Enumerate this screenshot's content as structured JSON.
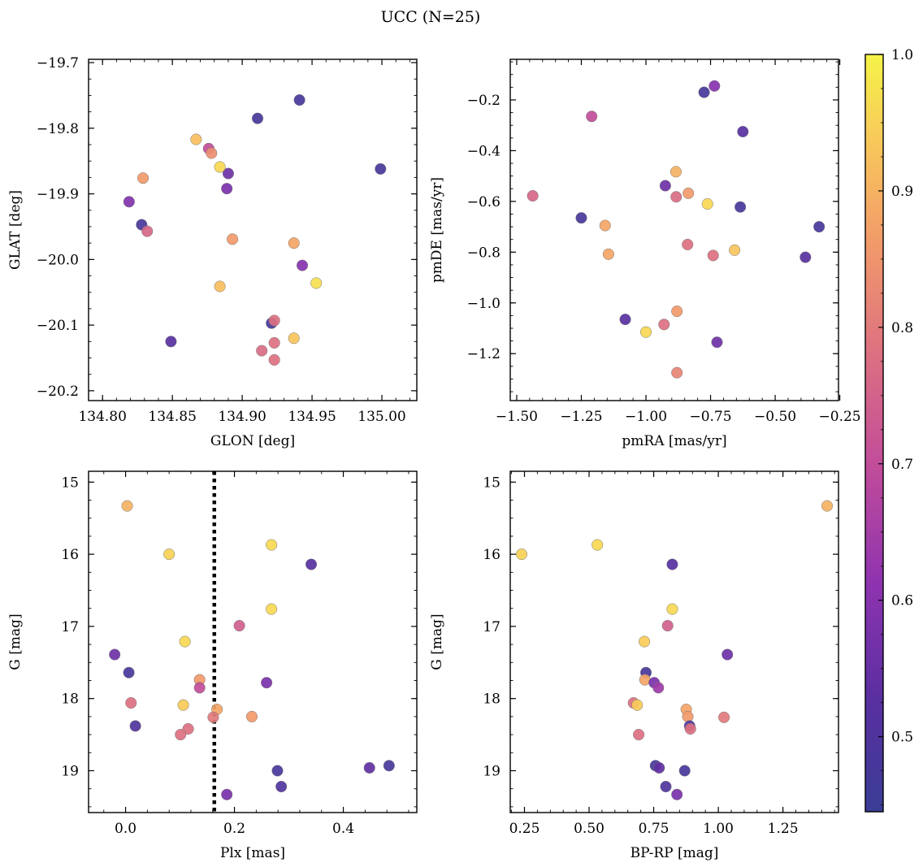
{
  "figure": {
    "title": "UCC (N=25)"
  },
  "colorbar": {
    "range": [
      0.445,
      1.0
    ],
    "ticks": [
      0.5,
      0.6,
      0.7,
      0.8,
      0.9,
      1.0
    ],
    "tick_labels": [
      "0.5",
      "0.6",
      "0.7",
      "0.8",
      "0.9",
      "1.0"
    ],
    "colormap": "plasma"
  },
  "chart_data": [
    {
      "type": "scatter",
      "id": "glon-glat",
      "xlabel": "GLON [deg]",
      "ylabel": "GLAT [deg]",
      "xlim": [
        134.79,
        135.025
      ],
      "ylim": [
        -20.215,
        -19.695
      ],
      "xticks": [
        134.8,
        134.85,
        134.9,
        134.95,
        135.0
      ],
      "xtick_labels": [
        "134.80",
        "134.85",
        "134.90",
        "134.95",
        "135.00"
      ],
      "yticks": [
        -19.7,
        -19.8,
        -19.9,
        -20.0,
        -20.1,
        -20.2
      ],
      "ytick_labels": [
        "−19.7",
        "−19.8",
        "−19.9",
        "−20.0",
        "−20.1",
        "−20.2"
      ],
      "invert_y": false,
      "x": [
        134.941,
        134.911,
        134.999,
        134.828,
        134.89,
        134.889,
        134.819,
        134.943,
        134.921,
        134.876,
        134.832,
        134.914,
        134.923,
        134.923,
        134.923,
        134.878,
        134.829,
        134.893,
        134.937,
        134.884,
        134.867,
        134.937,
        134.884,
        134.953,
        134.849
      ],
      "y": [
        -19.757,
        -19.785,
        -19.862,
        -19.947,
        -19.869,
        -19.892,
        -19.912,
        -20.009,
        -20.097,
        -19.831,
        -19.957,
        -20.139,
        -20.153,
        -20.127,
        -20.093,
        -19.838,
        -19.876,
        -19.969,
        -19.975,
        -20.041,
        -19.817,
        -20.12,
        -19.859,
        -20.036,
        -20.125
      ],
      "prob": [
        0.48,
        0.48,
        0.48,
        0.48,
        0.56,
        0.58,
        0.59,
        0.6,
        0.48,
        0.7,
        0.76,
        0.77,
        0.78,
        0.78,
        0.78,
        0.84,
        0.86,
        0.86,
        0.88,
        0.92,
        0.92,
        0.93,
        0.96,
        0.97,
        0.52
      ]
    },
    {
      "type": "scatter",
      "id": "pmra-pmde",
      "xlabel": "pmRA [mas/yr]",
      "ylabel": "pmDE [mas/yr]",
      "xlim": [
        -1.525,
        -0.255
      ],
      "ylim": [
        -1.385,
        -0.04
      ],
      "xticks": [
        -1.5,
        -1.25,
        -1.0,
        -0.75,
        -0.5,
        -0.25
      ],
      "xtick_labels": [
        "−1.50",
        "−1.25",
        "−1.00",
        "−0.75",
        "−0.50",
        "−0.25"
      ],
      "yticks": [
        -0.2,
        -0.4,
        -0.6,
        -0.8,
        -1.0,
        -1.2
      ],
      "ytick_labels": [
        "−0.2",
        "−0.4",
        "−0.6",
        "−0.8",
        "−1.0",
        "−1.2"
      ],
      "invert_y": false,
      "x": [
        -0.775,
        -0.625,
        -0.735,
        -1.25,
        -0.635,
        -0.33,
        -0.383,
        -0.925,
        -1.08,
        -0.725,
        -1.21,
        -1.438,
        -0.883,
        -0.839,
        -0.74,
        -0.93,
        -0.88,
        -0.836,
        -0.88,
        -1.158,
        -1.145,
        -0.884,
        -1.0,
        -0.762,
        -0.657
      ],
      "y": [
        -0.17,
        -0.325,
        -0.145,
        -0.665,
        -0.622,
        -0.7,
        -0.82,
        -0.538,
        -1.065,
        -1.155,
        -0.265,
        -0.578,
        -0.582,
        -0.77,
        -0.813,
        -1.085,
        -1.275,
        -0.568,
        -1.033,
        -0.695,
        -0.808,
        -0.483,
        -1.115,
        -0.61,
        -0.792
      ],
      "prob": [
        0.48,
        0.52,
        0.6,
        0.48,
        0.48,
        0.48,
        0.52,
        0.56,
        0.52,
        0.56,
        0.7,
        0.76,
        0.77,
        0.78,
        0.78,
        0.78,
        0.82,
        0.86,
        0.86,
        0.88,
        0.88,
        0.9,
        0.96,
        0.96,
        0.93
      ]
    },
    {
      "type": "scatter",
      "id": "plx-g",
      "xlabel": "Plx [mas]",
      "ylabel": "G [mag]",
      "xlim": [
        -0.068,
        0.535
      ],
      "ylim": [
        14.85,
        19.58
      ],
      "xticks": [
        0.0,
        0.2,
        0.4
      ],
      "xtick_labels": [
        "0.0",
        "0.2",
        "0.4"
      ],
      "yticks": [
        15,
        16,
        17,
        18,
        19
      ],
      "ytick_labels": [
        "15",
        "16",
        "17",
        "18",
        "19"
      ],
      "invert_y": true,
      "vline": 0.163,
      "x": [
        0.003,
        0.08,
        0.268,
        0.341,
        0.268,
        0.209,
        0.109,
        -0.02,
        0.006,
        0.136,
        0.136,
        0.259,
        0.01,
        0.106,
        0.168,
        0.161,
        0.232,
        0.018,
        0.115,
        0.101,
        0.448,
        0.484,
        0.279,
        0.286,
        0.186
      ],
      "y": [
        15.33,
        16.0,
        15.87,
        16.14,
        16.76,
        16.99,
        17.21,
        17.39,
        17.64,
        17.74,
        17.85,
        17.78,
        18.06,
        18.09,
        18.15,
        18.26,
        18.25,
        18.38,
        18.42,
        18.5,
        18.96,
        18.93,
        19.0,
        19.22,
        19.33
      ],
      "prob": [
        0.9,
        0.95,
        0.96,
        0.52,
        0.96,
        0.74,
        0.96,
        0.56,
        0.48,
        0.86,
        0.7,
        0.58,
        0.78,
        0.94,
        0.88,
        0.8,
        0.86,
        0.5,
        0.78,
        0.78,
        0.54,
        0.48,
        0.48,
        0.5,
        0.58
      ]
    },
    {
      "type": "scatter",
      "id": "bprp-g",
      "xlabel": "BP-RP [mag]",
      "ylabel": "G [mag]",
      "xlim": [
        0.195,
        1.465
      ],
      "ylim": [
        14.85,
        19.58
      ],
      "xticks": [
        0.25,
        0.5,
        0.75,
        1.0,
        1.25
      ],
      "xtick_labels": [
        "0.25",
        "0.50",
        "0.75",
        "1.00",
        "1.25"
      ],
      "yticks": [
        15,
        16,
        17,
        18,
        19
      ],
      "ytick_labels": [
        "15",
        "16",
        "17",
        "18",
        "19"
      ],
      "invert_y": true,
      "x": [
        1.421,
        0.239,
        0.532,
        0.822,
        0.822,
        0.804,
        0.714,
        1.035,
        0.72,
        0.716,
        0.752,
        0.768,
        0.672,
        0.686,
        0.876,
        0.882,
        1.022,
        0.889,
        0.892,
        0.692,
        0.757,
        0.771,
        0.87,
        0.797,
        0.84
      ],
      "y": [
        15.33,
        16.0,
        15.87,
        16.14,
        16.76,
        16.99,
        17.21,
        17.39,
        17.64,
        17.74,
        17.78,
        17.85,
        18.06,
        18.09,
        18.15,
        18.25,
        18.26,
        18.38,
        18.42,
        18.5,
        18.93,
        18.96,
        19.0,
        19.22,
        19.33
      ],
      "prob": [
        0.9,
        0.95,
        0.96,
        0.52,
        0.96,
        0.74,
        0.94,
        0.56,
        0.48,
        0.88,
        0.58,
        0.64,
        0.78,
        0.94,
        0.88,
        0.86,
        0.8,
        0.5,
        0.78,
        0.78,
        0.48,
        0.54,
        0.48,
        0.5,
        0.58
      ]
    }
  ]
}
